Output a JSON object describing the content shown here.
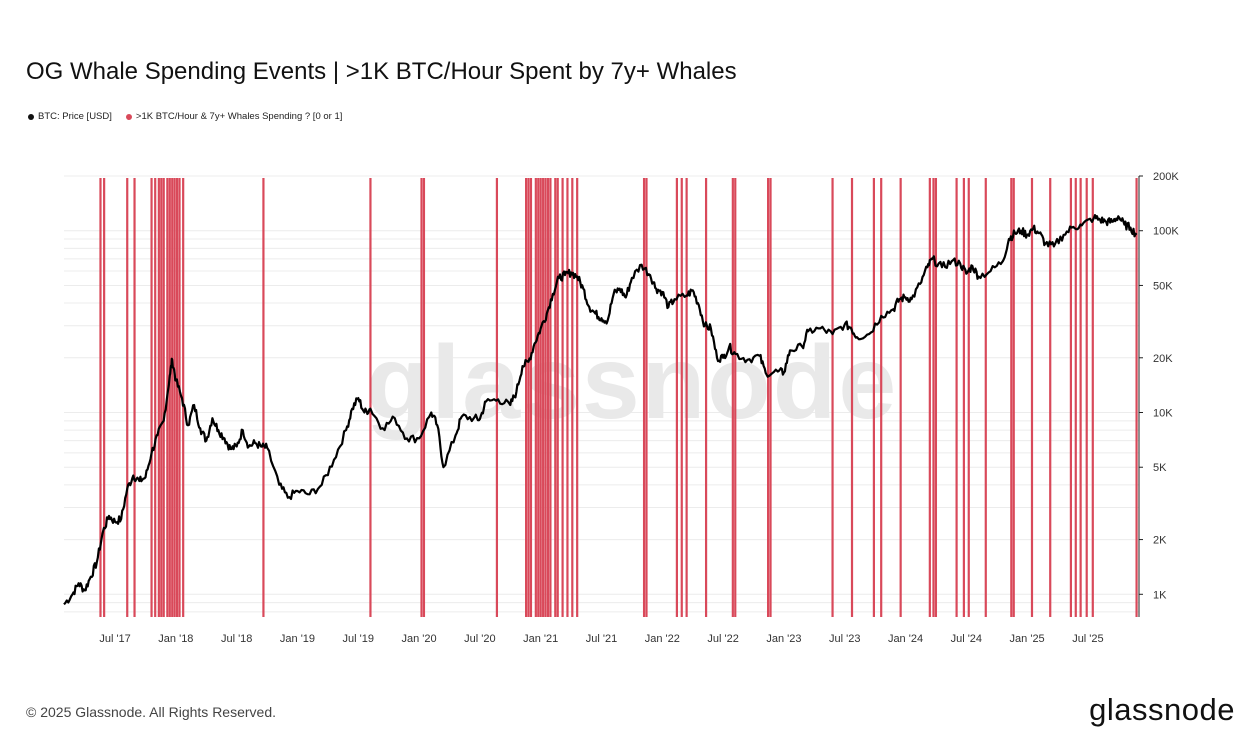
{
  "chart_data": {
    "type": "line",
    "title": "OG Whale Spending Events | >1K BTC/Hour Spent by 7y+ Whales",
    "legend": [
      {
        "name": "BTC: Price [USD]",
        "color": "#111111"
      },
      {
        "name": ">1K BTC/Hour & 7y+ Whales Spending ? [0 or 1]",
        "color": "#d9495a"
      }
    ],
    "watermark": "glassnode",
    "y_scale": "log",
    "ylim": [
      750,
      200000
    ],
    "y_ticks": [
      {
        "value": 1000,
        "label": "1K"
      },
      {
        "value": 2000,
        "label": "2K"
      },
      {
        "value": 5000,
        "label": "5K"
      },
      {
        "value": 10000,
        "label": "10K"
      },
      {
        "value": 20000,
        "label": "20K"
      },
      {
        "value": 50000,
        "label": "50K"
      },
      {
        "value": 100000,
        "label": "100K"
      },
      {
        "value": 200000,
        "label": "200K"
      }
    ],
    "xlim": [
      2017.08,
      2025.92
    ],
    "x_ticks": [
      {
        "value": 2017.5,
        "label": "Jul '17"
      },
      {
        "value": 2018.0,
        "label": "Jan '18"
      },
      {
        "value": 2018.5,
        "label": "Jul '18"
      },
      {
        "value": 2019.0,
        "label": "Jan '19"
      },
      {
        "value": 2019.5,
        "label": "Jul '19"
      },
      {
        "value": 2020.0,
        "label": "Jan '20"
      },
      {
        "value": 2020.5,
        "label": "Jul '20"
      },
      {
        "value": 2021.0,
        "label": "Jan '21"
      },
      {
        "value": 2021.5,
        "label": "Jul '21"
      },
      {
        "value": 2022.0,
        "label": "Jan '22"
      },
      {
        "value": 2022.5,
        "label": "Jul '22"
      },
      {
        "value": 2023.0,
        "label": "Jan '23"
      },
      {
        "value": 2023.5,
        "label": "Jul '23"
      },
      {
        "value": 2024.0,
        "label": "Jan '24"
      },
      {
        "value": 2024.5,
        "label": "Jul '24"
      },
      {
        "value": 2025.0,
        "label": "Jan '25"
      },
      {
        "value": 2025.5,
        "label": "Jul '25"
      }
    ],
    "price_series": {
      "name": "BTC: Price [USD]",
      "points": [
        [
          2017.08,
          880
        ],
        [
          2017.15,
          1000
        ],
        [
          2017.2,
          1150
        ],
        [
          2017.25,
          1050
        ],
        [
          2017.3,
          1250
        ],
        [
          2017.35,
          1500
        ],
        [
          2017.4,
          2200
        ],
        [
          2017.45,
          2700
        ],
        [
          2017.5,
          2500
        ],
        [
          2017.55,
          2600
        ],
        [
          2017.6,
          3800
        ],
        [
          2017.65,
          4500
        ],
        [
          2017.7,
          4200
        ],
        [
          2017.75,
          4400
        ],
        [
          2017.8,
          6000
        ],
        [
          2017.85,
          7500
        ],
        [
          2017.9,
          9000
        ],
        [
          2017.95,
          16000
        ],
        [
          2017.97,
          19500
        ],
        [
          2018.0,
          15000
        ],
        [
          2018.05,
          12000
        ],
        [
          2018.1,
          8500
        ],
        [
          2018.15,
          11000
        ],
        [
          2018.2,
          8200
        ],
        [
          2018.25,
          7000
        ],
        [
          2018.3,
          9300
        ],
        [
          2018.35,
          8000
        ],
        [
          2018.4,
          7200
        ],
        [
          2018.45,
          6300
        ],
        [
          2018.5,
          6500
        ],
        [
          2018.55,
          8000
        ],
        [
          2018.6,
          6500
        ],
        [
          2018.65,
          6800
        ],
        [
          2018.7,
          6500
        ],
        [
          2018.75,
          6400
        ],
        [
          2018.85,
          4000
        ],
        [
          2018.92,
          3400
        ],
        [
          2019.0,
          3700
        ],
        [
          2019.1,
          3550
        ],
        [
          2019.2,
          4000
        ],
        [
          2019.3,
          5500
        ],
        [
          2019.4,
          8000
        ],
        [
          2019.45,
          10500
        ],
        [
          2019.5,
          12000
        ],
        [
          2019.55,
          10000
        ],
        [
          2019.6,
          10500
        ],
        [
          2019.7,
          8200
        ],
        [
          2019.8,
          9300
        ],
        [
          2019.9,
          7200
        ],
        [
          2020.0,
          7200
        ],
        [
          2020.1,
          10000
        ],
        [
          2020.15,
          8500
        ],
        [
          2020.2,
          5000
        ],
        [
          2020.3,
          7500
        ],
        [
          2020.35,
          9500
        ],
        [
          2020.45,
          9300
        ],
        [
          2020.5,
          9200
        ],
        [
          2020.55,
          11500
        ],
        [
          2020.65,
          11800
        ],
        [
          2020.75,
          11000
        ],
        [
          2020.8,
          13000
        ],
        [
          2020.85,
          18000
        ],
        [
          2020.9,
          19000
        ],
        [
          2020.95,
          24000
        ],
        [
          2021.0,
          29000
        ],
        [
          2021.05,
          35000
        ],
        [
          2021.1,
          45000
        ],
        [
          2021.15,
          55000
        ],
        [
          2021.2,
          57000
        ],
        [
          2021.25,
          59000
        ],
        [
          2021.3,
          56000
        ],
        [
          2021.35,
          48000
        ],
        [
          2021.4,
          38000
        ],
        [
          2021.45,
          35000
        ],
        [
          2021.5,
          33000
        ],
        [
          2021.55,
          32000
        ],
        [
          2021.6,
          45000
        ],
        [
          2021.65,
          48000
        ],
        [
          2021.7,
          43000
        ],
        [
          2021.75,
          55000
        ],
        [
          2021.83,
          65000
        ],
        [
          2021.9,
          57000
        ],
        [
          2021.95,
          48000
        ],
        [
          2022.0,
          46000
        ],
        [
          2022.05,
          38000
        ],
        [
          2022.1,
          42000
        ],
        [
          2022.2,
          44000
        ],
        [
          2022.25,
          47000
        ],
        [
          2022.3,
          39000
        ],
        [
          2022.35,
          30000
        ],
        [
          2022.4,
          29000
        ],
        [
          2022.45,
          20000
        ],
        [
          2022.5,
          20000
        ],
        [
          2022.55,
          23000
        ],
        [
          2022.6,
          21000
        ],
        [
          2022.7,
          19500
        ],
        [
          2022.8,
          20500
        ],
        [
          2022.85,
          16500
        ],
        [
          2022.95,
          16800
        ],
        [
          2023.0,
          16600
        ],
        [
          2023.05,
          22000
        ],
        [
          2023.15,
          23000
        ],
        [
          2023.2,
          28000
        ],
        [
          2023.3,
          29000
        ],
        [
          2023.4,
          27000
        ],
        [
          2023.5,
          30500
        ],
        [
          2023.55,
          29300
        ],
        [
          2023.6,
          26000
        ],
        [
          2023.7,
          27000
        ],
        [
          2023.8,
          34000
        ],
        [
          2023.9,
          37000
        ],
        [
          2023.95,
          42000
        ],
        [
          2024.0,
          43000
        ],
        [
          2024.05,
          42000
        ],
        [
          2024.12,
          51000
        ],
        [
          2024.18,
          63000
        ],
        [
          2024.22,
          70000
        ],
        [
          2024.3,
          63000
        ],
        [
          2024.38,
          68000
        ],
        [
          2024.45,
          66000
        ],
        [
          2024.5,
          58000
        ],
        [
          2024.55,
          64000
        ],
        [
          2024.6,
          56000
        ],
        [
          2024.7,
          60000
        ],
        [
          2024.8,
          68000
        ],
        [
          2024.85,
          90000
        ],
        [
          2024.9,
          97000
        ],
        [
          2024.95,
          100000
        ],
        [
          2025.0,
          95000
        ],
        [
          2025.05,
          103000
        ],
        [
          2025.1,
          97000
        ],
        [
          2025.15,
          85000
        ],
        [
          2025.22,
          82000
        ],
        [
          2025.3,
          95000
        ],
        [
          2025.38,
          105000
        ],
        [
          2025.45,
          107000
        ],
        [
          2025.55,
          118000
        ],
        [
          2025.6,
          115000
        ],
        [
          2025.65,
          112000
        ],
        [
          2025.7,
          112000
        ],
        [
          2025.75,
          120000
        ],
        [
          2025.8,
          108000
        ],
        [
          2025.85,
          104000
        ],
        [
          2025.9,
          95000
        ]
      ]
    },
    "spending_events": {
      "name": ">1K BTC/Hour & 7y+ Whales Spending ? [0 or 1]",
      "dates": [
        2017.38,
        2017.41,
        2017.6,
        2017.66,
        2017.8,
        2017.83,
        2017.86,
        2017.88,
        2017.9,
        2017.93,
        2017.95,
        2017.97,
        2017.99,
        2018.01,
        2018.03,
        2018.06,
        2018.72,
        2019.6,
        2020.02,
        2020.04,
        2020.64,
        2020.88,
        2020.9,
        2020.92,
        2020.96,
        2020.98,
        2021.0,
        2021.02,
        2021.04,
        2021.06,
        2021.08,
        2021.12,
        2021.14,
        2021.18,
        2021.22,
        2021.26,
        2021.3,
        2021.85,
        2021.87,
        2022.12,
        2022.16,
        2022.2,
        2022.36,
        2022.58,
        2022.6,
        2022.87,
        2022.89,
        2023.4,
        2023.56,
        2023.74,
        2023.8,
        2023.96,
        2024.2,
        2024.23,
        2024.25,
        2024.42,
        2024.48,
        2024.52,
        2024.66,
        2024.87,
        2024.89,
        2025.04,
        2025.19,
        2025.36,
        2025.4,
        2025.44,
        2025.49,
        2025.54,
        2025.9
      ]
    }
  },
  "footer": {
    "copyright": "© 2025 Glassnode. All Rights Reserved.",
    "brand": "glassnode"
  }
}
